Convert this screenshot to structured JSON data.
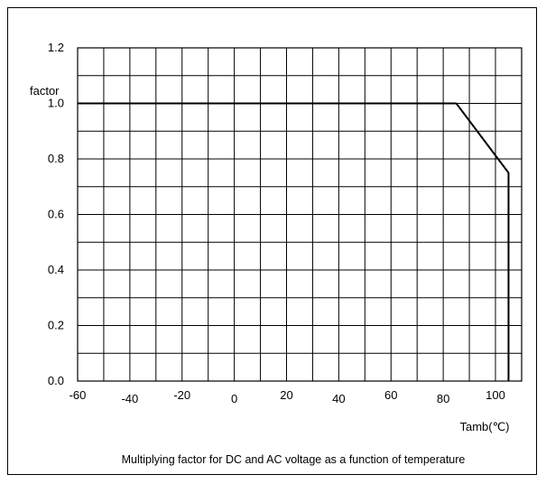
{
  "chart_data": {
    "type": "line",
    "title": "",
    "caption": "Multiplying factor for DC and AC voltage as a function of temperature",
    "xlabel": "Tamb(℃)",
    "ylabel": "factor",
    "xlim": [
      -60,
      100
    ],
    "ylim": [
      0,
      1.2
    ],
    "x_ticks": [
      -60,
      -50,
      -40,
      -30,
      -20,
      -10,
      0,
      10,
      20,
      30,
      40,
      50,
      60,
      70,
      80,
      90,
      100
    ],
    "x_tick_labels": [
      "-60",
      "-40",
      "-20",
      "0",
      "20",
      "40",
      "60",
      "80",
      "100"
    ],
    "x_tick_label_values": [
      -60,
      -40,
      -20,
      0,
      20,
      40,
      60,
      80,
      100
    ],
    "y_ticks": [
      0,
      0.1,
      0.2,
      0.3,
      0.4,
      0.5,
      0.6,
      0.7,
      0.8,
      0.9,
      1.0,
      1.1,
      1.2
    ],
    "y_tick_labels": [
      "0.0",
      "0.2",
      "0.4",
      "0.6",
      "0.8",
      "1.0",
      "1.2"
    ],
    "y_tick_label_values": [
      0,
      0.2,
      0.4,
      0.6,
      0.8,
      1.0,
      1.2
    ],
    "grid": true,
    "series": [
      {
        "x": [
          -60,
          85,
          105,
          105
        ],
        "y": [
          1.0,
          1.0,
          0.75,
          0.0
        ]
      }
    ]
  }
}
